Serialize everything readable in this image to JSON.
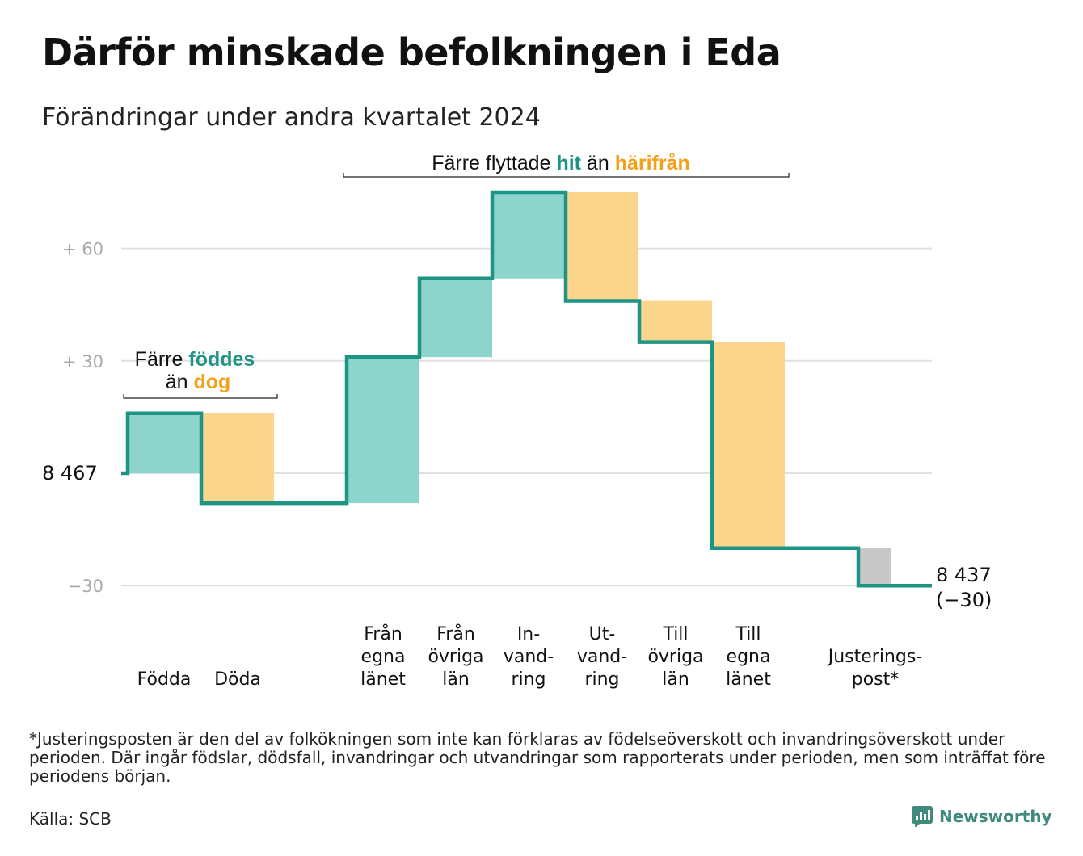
{
  "title": "Därför minskade befolkningen i Eda",
  "subtitle": "Förändringar under andra kvartalet 2024",
  "annotations": {
    "births": {
      "line1_prefix": "Färre ",
      "line1_highlight": "föddes",
      "line2_prefix": "än ",
      "line2_highlight": "dog"
    },
    "moves": {
      "prefix": "Färre flyttade ",
      "highlight1": "hit",
      "middle": " än ",
      "highlight2": "härifrån"
    }
  },
  "start_label": "8  467",
  "end_label": {
    "line1": "8 437",
    "line2": "(−30)"
  },
  "footnote": "*Justeringsposten är den del av folkökningen som inte kan förklaras av födelseöverskott och invandringsöverskott under perioden. Där ingår födslar, dödsfall, invandringar och utvandringar som rapporterats under perioden, men som inträffat före periodens början.",
  "source": "Källa: SCB",
  "brand": "Newsworthy",
  "colors": {
    "increase": "#8dd4cc",
    "decrease": "#fbd58c",
    "adjustment": "#c8c8c8",
    "step_line": "#1d9484",
    "accent_teal": "#1d9484",
    "accent_orange": "#f3a11b",
    "grid": "#e0e0e0",
    "brand": "#3f8a7c"
  },
  "chart_data": {
    "type": "waterfall",
    "title": "Därför minskade befolkningen i Eda",
    "subtitle": "Förändringar under andra kvartalet 2024",
    "start_value": 8467,
    "end_value": 8437,
    "net_change": -30,
    "y_tick_values": [
      60,
      30,
      -30
    ],
    "y_tick_labels": [
      "+  60",
      "+  30",
      "−30"
    ],
    "ylim": [
      -36,
      77
    ],
    "grid": true,
    "steps": [
      {
        "label": [
          "Födda"
        ],
        "value": 16,
        "kind": "increase"
      },
      {
        "label": [
          "Döda"
        ],
        "value": -24,
        "kind": "decrease"
      },
      {
        "label": [
          "Från",
          "egna",
          "länet"
        ],
        "value": 39,
        "kind": "increase"
      },
      {
        "label": [
          "Från",
          "övriga",
          "län"
        ],
        "value": 21,
        "kind": "increase"
      },
      {
        "label": [
          "In-",
          "vand-",
          "ring"
        ],
        "value": 23,
        "kind": "increase"
      },
      {
        "label": [
          "Ut-",
          "vand-",
          "ring"
        ],
        "value": -29,
        "kind": "decrease"
      },
      {
        "label": [
          "Till",
          "övriga",
          "län"
        ],
        "value": -11,
        "kind": "decrease"
      },
      {
        "label": [
          "Till",
          "egna",
          "länet"
        ],
        "value": -55,
        "kind": "decrease"
      },
      {
        "label": [
          "Justerings-",
          "post*"
        ],
        "value": -10,
        "kind": "adjustment"
      }
    ]
  }
}
